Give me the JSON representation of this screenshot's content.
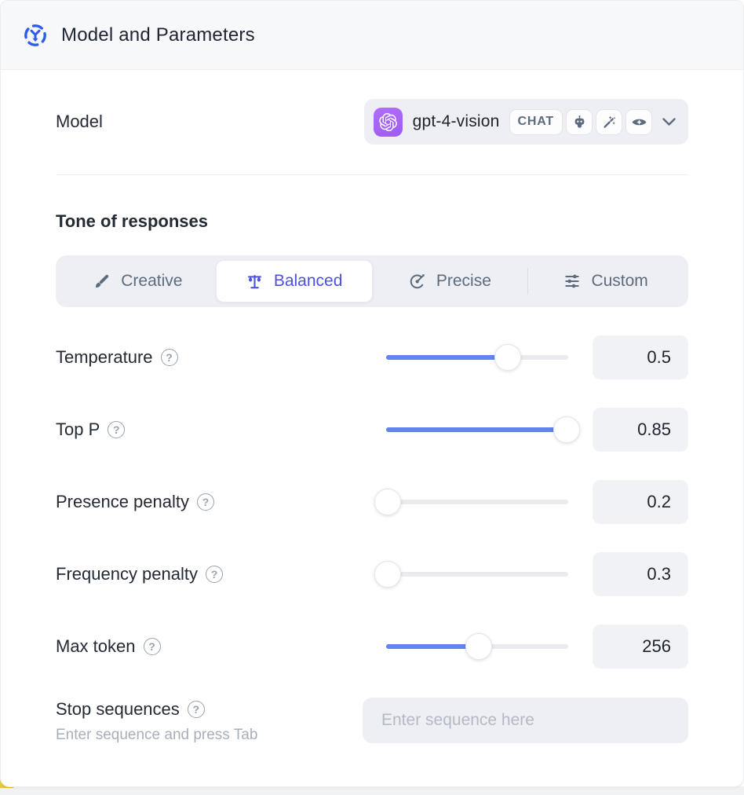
{
  "header": {
    "title": "Model and Parameters"
  },
  "model_row": {
    "label": "Model",
    "selected_model": "gpt-4-vision",
    "type_badge": "CHAT",
    "capability_icons": [
      "robot",
      "magic-wand",
      "vision-eye"
    ]
  },
  "tone": {
    "heading": "Tone of responses",
    "options": [
      {
        "label": "Creative",
        "icon": "paintbrush",
        "selected": false
      },
      {
        "label": "Balanced",
        "icon": "balance-scales",
        "selected": true
      },
      {
        "label": "Precise",
        "icon": "target-arrow",
        "selected": false
      },
      {
        "label": "Custom",
        "icon": "sliders",
        "selected": false
      }
    ]
  },
  "parameters": [
    {
      "label": "Temperature",
      "value": "0.5",
      "fill_percent": 67
    },
    {
      "label": "Top P",
      "value": "0.85",
      "fill_percent": 99
    },
    {
      "label": "Presence penalty",
      "value": "0.2",
      "fill_percent": 1
    },
    {
      "label": "Frequency penalty",
      "value": "0.3",
      "fill_percent": 1
    },
    {
      "label": "Max token",
      "value": "256",
      "fill_percent": 51
    }
  ],
  "stop_sequences": {
    "label": "Stop sequences",
    "hint": "Enter sequence and press Tab",
    "placeholder": "Enter sequence here"
  },
  "help_glyph": "?",
  "colors": {
    "accent_slider_blue": "#6283f1",
    "active_tone_indigo": "#4b50e2",
    "openai_badge_purple": "#a964f7",
    "header_icon_blue": "#2c5bee",
    "yellow_corner": "#e3bc2a"
  }
}
